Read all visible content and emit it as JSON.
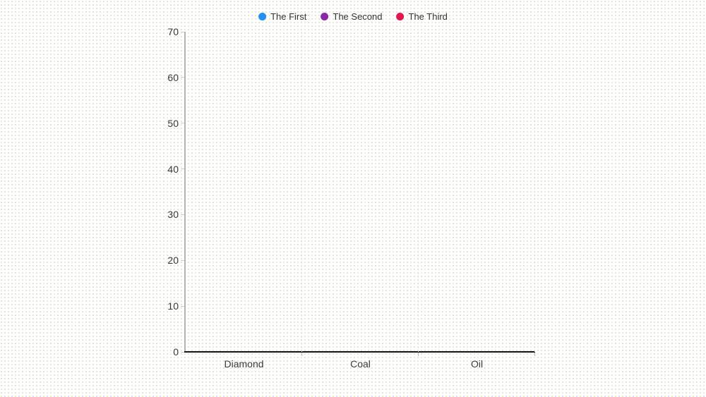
{
  "chart": {
    "legend_items": [
      {
        "label": "The First",
        "color": "#2191ef"
      },
      {
        "label": "The Second",
        "color": "#8c27a8"
      },
      {
        "label": "The Third",
        "color": "#e0164f"
      }
    ],
    "y_ticks": [
      70,
      60,
      50,
      40,
      30,
      20,
      10,
      0
    ],
    "x_categories": [
      "Diamond",
      "Coal",
      "Oil"
    ]
  },
  "chart_data": {
    "type": "bar",
    "title": "",
    "xlabel": "",
    "ylabel": "",
    "categories": [
      "Diamond",
      "Coal",
      "Oil"
    ],
    "series": [
      {
        "name": "The First",
        "color": "#2191ef",
        "values": []
      },
      {
        "name": "The Second",
        "color": "#8c27a8",
        "values": []
      },
      {
        "name": "The Third",
        "color": "#e0164f",
        "values": []
      }
    ],
    "ylim": [
      0,
      70
    ],
    "y_tick_step": 10,
    "grid": "vertical dashed lines at category boundaries only",
    "legend_position": "top-center",
    "bars_rendered": false
  }
}
